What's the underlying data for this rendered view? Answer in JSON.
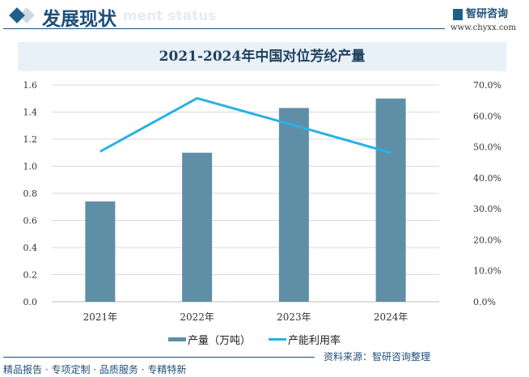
{
  "header": {
    "section_title": "发展现状",
    "section_subtitle_en": "ment status",
    "logo_text": "智研咨询",
    "url": "www.chyxx.com"
  },
  "footer": {
    "source": "资料来源：智研咨询整理",
    "slogan": "精品报告 · 专项定制 · 品质服务 · 专精特新"
  },
  "colors": {
    "bar": "#5e8fa6",
    "line": "#29b1e6"
  },
  "chart_data": {
    "type": "bar+line",
    "title": "2021-2024年中国对位芳纶产量",
    "categories": [
      "2021年",
      "2022年",
      "2023年",
      "2024年"
    ],
    "series": [
      {
        "name": "产量（万吨）",
        "type": "bar",
        "axis": "left",
        "values": [
          0.74,
          1.1,
          1.43,
          1.5
        ]
      },
      {
        "name": "产能利用率",
        "type": "line",
        "axis": "right",
        "values": [
          48.5,
          65.7,
          57.0,
          48.1
        ]
      }
    ],
    "left_axis": {
      "range": [
        0,
        1.6
      ],
      "ticks": [
        "0.0",
        "0.2",
        "0.4",
        "0.6",
        "0.8",
        "1.0",
        "1.2",
        "1.4",
        "1.6"
      ]
    },
    "right_axis": {
      "range": [
        0,
        70
      ],
      "ticks": [
        "0.0%",
        "10.0%",
        "20.0%",
        "30.0%",
        "40.0%",
        "50.0%",
        "60.0%",
        "70.0%"
      ]
    },
    "grid": true,
    "legend": "bottom"
  }
}
